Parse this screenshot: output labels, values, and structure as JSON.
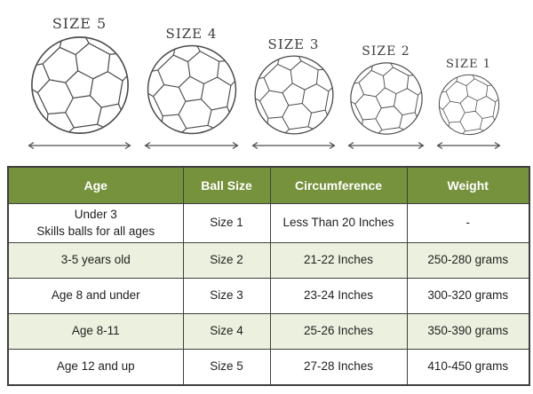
{
  "balls": [
    {
      "label": "SIZE 5"
    },
    {
      "label": "SIZE 4"
    },
    {
      "label": "SIZE 3"
    },
    {
      "label": "SIZE 2"
    },
    {
      "label": "SIZE 1"
    }
  ],
  "table": {
    "headers": {
      "age": "Age",
      "size": "Ball Size",
      "circumference": "Circumference",
      "weight": "Weight"
    },
    "rows": [
      {
        "age": "Under 3\nSkills balls for all ages",
        "size": "Size 1",
        "circumference": "Less Than 20 Inches",
        "weight": "-"
      },
      {
        "age": "3-5 years old",
        "size": "Size 2",
        "circumference": "21-22 Inches",
        "weight": "250-280 grams"
      },
      {
        "age": "Age 8 and under",
        "size": "Size 3",
        "circumference": "23-24 Inches",
        "weight": "300-320 grams"
      },
      {
        "age": "Age 8-11",
        "size": "Size 4",
        "circumference": "25-26 Inches",
        "weight": "350-390 grams"
      },
      {
        "age": "Age 12 and up",
        "size": "Size 5",
        "circumference": "27-28 Inches",
        "weight": "410-450 grams"
      }
    ]
  },
  "colors": {
    "header_bg": "#76923C",
    "row_alt_bg": "#EBF1DE",
    "border": "#3f3f3f",
    "line_art": "#4d4d4d"
  }
}
